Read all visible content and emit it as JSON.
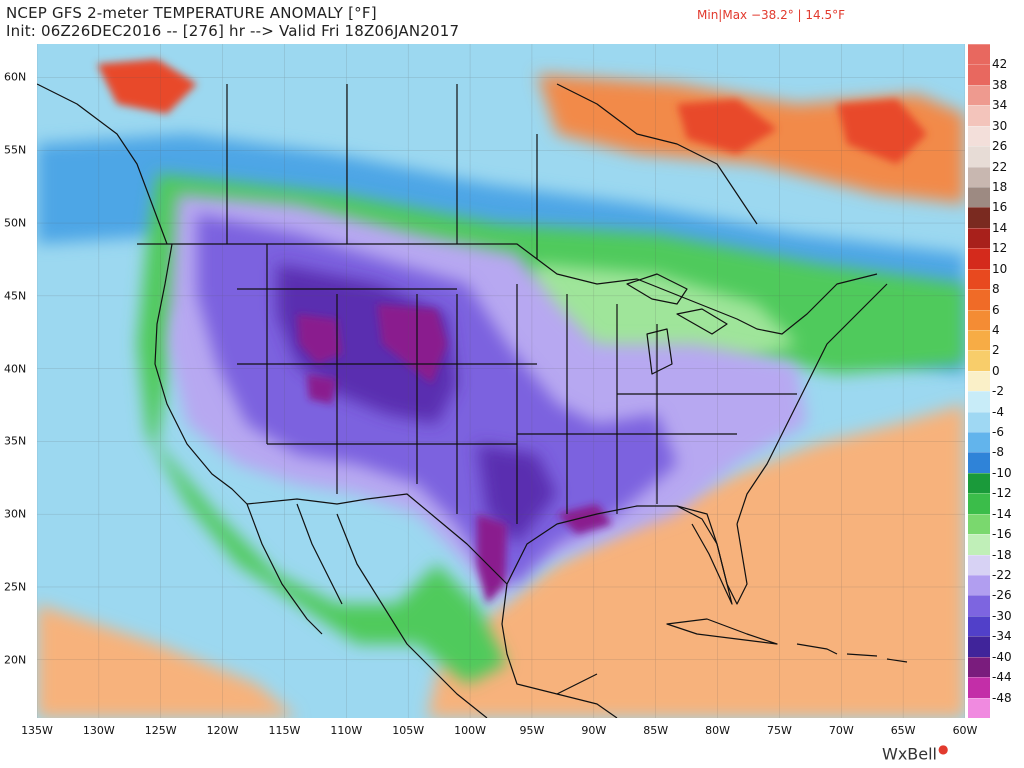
{
  "title_line1": "NCEP GFS 2-meter TEMPERATURE ANOMALY [°F]",
  "title_line2": "Init: 06Z26DEC2016 -- [276] hr --> Valid Fri 18Z06JAN2017",
  "minmax": "Min|Max −38.2° | 14.5°F",
  "brand": "WxBell",
  "lat_labels": [
    "60N",
    "55N",
    "50N",
    "45N",
    "40N",
    "35N",
    "30N",
    "25N",
    "20N"
  ],
  "lon_labels": [
    "135W",
    "130W",
    "125W",
    "120W",
    "115W",
    "110W",
    "105W",
    "100W",
    "95W",
    "90W",
    "85W",
    "80W",
    "75W",
    "70W",
    "65W",
    "60W"
  ],
  "colorbar": {
    "labels": [
      "42",
      "38",
      "34",
      "30",
      "26",
      "22",
      "18",
      "16",
      "14",
      "12",
      "10",
      "8",
      "6",
      "4",
      "2",
      "0",
      "-2",
      "-4",
      "-6",
      "-8",
      "-10",
      "-12",
      "-14",
      "-16",
      "-18",
      "-22",
      "-26",
      "-30",
      "-34",
      "-40",
      "-44",
      "-48"
    ],
    "colors": [
      "#e8685f",
      "#ee9a8f",
      "#f3c4bb",
      "#f3dfda",
      "#e7dcd6",
      "#c8b7b0",
      "#9d8a82",
      "#7a2a20",
      "#a8201b",
      "#d42a1c",
      "#e8491f",
      "#f06b27",
      "#f48c34",
      "#f7ac45",
      "#f8cd6a",
      "#faf0c8",
      "#c8ecf8",
      "#9fd8f3",
      "#62b4ec",
      "#2f83d8",
      "#1a9a3a",
      "#3bbd4a",
      "#7ad86e",
      "#c0efb8",
      "#d7d2f4",
      "#b19ef0",
      "#7d65e0",
      "#5140c9",
      "#40249a",
      "#7a1c7d",
      "#c32ea8",
      "#f08ae0"
    ]
  },
  "map": {
    "background": "#9cd8f0",
    "gulf_warm": "#f7b27c",
    "canada_warm": "#f28a4a",
    "canada_hot": "#e84a2a",
    "cold_core": "#8a1f8e",
    "cold_deep": "#5a2fb0",
    "cold": "#7b62df",
    "cool": "#b7a8f1",
    "neutral_green": "#4fca5b",
    "light_green": "#9fe59a",
    "blue": "#4ea6e6"
  }
}
